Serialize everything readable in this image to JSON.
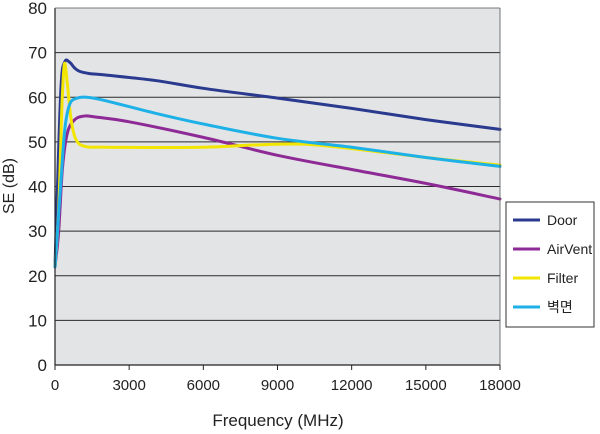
{
  "chart_data": {
    "type": "line",
    "title": "",
    "xlabel": "Frequency (MHz)",
    "ylabel": "SE (dB)",
    "xlim": [
      0,
      18000
    ],
    "ylim": [
      0,
      80
    ],
    "xticks": [
      "0",
      "3000",
      "6000",
      "9000",
      "12000",
      "15000",
      "18000"
    ],
    "yticks": [
      "0",
      "10",
      "20",
      "30",
      "40",
      "50",
      "60",
      "70",
      "80"
    ],
    "grid": "horizontal",
    "legend_position": "right",
    "plot_background": "#e3e4e6",
    "series": [
      {
        "name": "Door",
        "color": "#2a3a8f",
        "points": [
          [
            0,
            22
          ],
          [
            100,
            40
          ],
          [
            250,
            63
          ],
          [
            400,
            68
          ],
          [
            600,
            67.8
          ],
          [
            800,
            66.5
          ],
          [
            1000,
            65.8
          ],
          [
            1400,
            65.3
          ],
          [
            2000,
            65
          ],
          [
            4000,
            63.8
          ],
          [
            6000,
            62
          ],
          [
            9000,
            59.8
          ],
          [
            12000,
            57.5
          ],
          [
            15000,
            55
          ],
          [
            18000,
            52.8
          ]
        ]
      },
      {
        "name": "AirVent",
        "color": "#8e2a96",
        "points": [
          [
            0,
            22
          ],
          [
            150,
            30
          ],
          [
            300,
            44
          ],
          [
            500,
            52
          ],
          [
            800,
            55
          ],
          [
            1200,
            55.8
          ],
          [
            1600,
            55.6
          ],
          [
            3000,
            54.5
          ],
          [
            6000,
            51
          ],
          [
            9000,
            47
          ],
          [
            12000,
            43.8
          ],
          [
            15000,
            40.7
          ],
          [
            18000,
            37.2
          ]
        ]
      },
      {
        "name": "Filter",
        "color": "#f2e600",
        "points": [
          [
            0,
            22
          ],
          [
            150,
            35
          ],
          [
            280,
            58
          ],
          [
            380,
            67.5
          ],
          [
            500,
            63
          ],
          [
            650,
            55
          ],
          [
            850,
            50.5
          ],
          [
            1200,
            49
          ],
          [
            2000,
            48.8
          ],
          [
            6000,
            48.8
          ],
          [
            8000,
            49.3
          ],
          [
            10000,
            49.5
          ],
          [
            12000,
            48.5
          ],
          [
            15000,
            46.5
          ],
          [
            18000,
            44.8
          ]
        ]
      },
      {
        "name": "벽면",
        "color": "#1eb1e8",
        "points": [
          [
            0,
            22
          ],
          [
            100,
            30
          ],
          [
            250,
            42
          ],
          [
            400,
            53
          ],
          [
            600,
            58.5
          ],
          [
            900,
            59.8
          ],
          [
            1300,
            60
          ],
          [
            2000,
            59.3
          ],
          [
            4000,
            56.5
          ],
          [
            6000,
            54
          ],
          [
            9000,
            50.8
          ],
          [
            12000,
            48.8
          ],
          [
            15000,
            46.5
          ],
          [
            18000,
            44.5
          ]
        ]
      }
    ]
  }
}
